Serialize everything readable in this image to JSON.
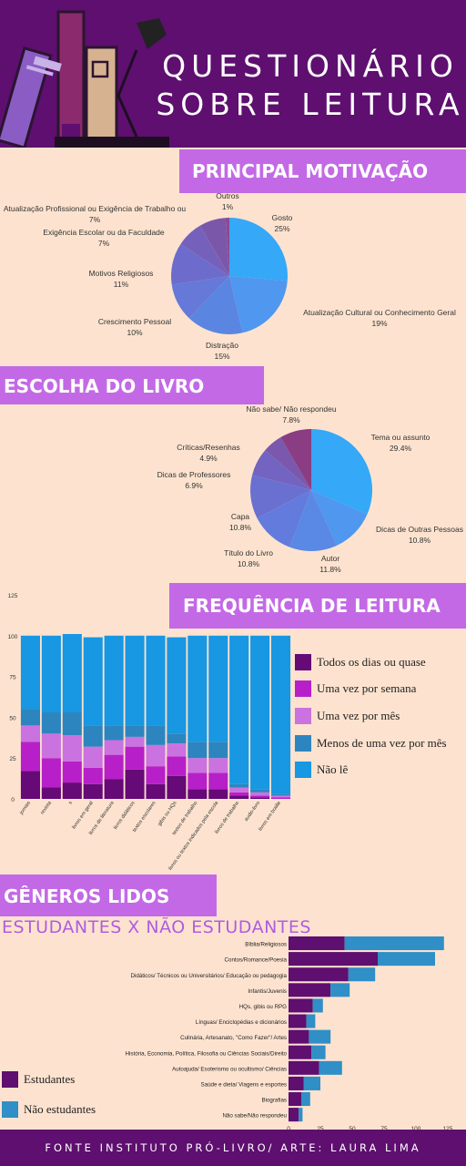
{
  "header": {
    "title_line1": "QUESTIONÁRIO",
    "title_line2": "SOBRE LEITURA"
  },
  "sections": {
    "motivation": "PRINCIPAL MOTIVAÇÃO",
    "choice": "ESCOLHA DO LIVRO",
    "frequency": "FREQUÊNCIA DE LEITURA",
    "genres": "GÊNEROS LIDOS",
    "genres_sub": "ESTUDANTES X NÃO ESTUDANTES"
  },
  "footer": "FONTE INSTITUTO PRÓ-LIVRO/ ARTE: LAURA LIMA",
  "chart_data": [
    {
      "type": "pie",
      "title": "PRINCIPAL MOTIVAÇÃO",
      "slices": [
        {
          "label": "Gosto",
          "pct": "25%",
          "value": 25,
          "color": "#35a8f8"
        },
        {
          "label": "Atualização Cultural ou Conhecimento Geral",
          "pct": "19%",
          "value": 19,
          "color": "#4f97ef"
        },
        {
          "label": "Distração",
          "pct": "15%",
          "value": 15,
          "color": "#5a86e2"
        },
        {
          "label": "Crescimento Pessoal",
          "pct": "10%",
          "value": 10,
          "color": "#6678d8"
        },
        {
          "label": "Motivos Religiosos",
          "pct": "11%",
          "value": 11,
          "color": "#6d6ccc"
        },
        {
          "label": "Exigência Escolar ou da Faculdade",
          "pct": "7%",
          "value": 7,
          "color": "#7561bb"
        },
        {
          "label": "Atualização Profissional ou Exigência de Trabalho ou",
          "pct": "7%",
          "value": 7,
          "color": "#7b57aa"
        },
        {
          "label": "Outros",
          "pct": "1%",
          "value": 1,
          "color": "#8a4a95"
        }
      ]
    },
    {
      "type": "pie",
      "title": "ESCOLHA DO LIVRO",
      "slices": [
        {
          "label": "Tema ou assunto",
          "pct": "29.4%",
          "value": 29.4,
          "color": "#35a8f8"
        },
        {
          "label": "Dicas de Outras Pessoas",
          "pct": "10.8%",
          "value": 10.8,
          "color": "#4f97ef"
        },
        {
          "label": "Autor",
          "pct": "11.8%",
          "value": 11.8,
          "color": "#5a88e5"
        },
        {
          "label": "Título do Livro",
          "pct": "10.8%",
          "value": 10.8,
          "color": "#627bdc"
        },
        {
          "label": "Capa",
          "pct": "10.8%",
          "value": 10.8,
          "color": "#6a70d0"
        },
        {
          "label": "Dicas de Professores",
          "pct": "6.9%",
          "value": 6.9,
          "color": "#7264c0"
        },
        {
          "label": "Críticas/Resenhas",
          "pct": "4.9%",
          "value": 4.9,
          "color": "#7a58ad"
        },
        {
          "label": "Não sabe/ Não respondeu",
          "pct": "7.8%",
          "value": 7.8,
          "color": "#8a3d82"
        }
      ]
    },
    {
      "type": "bar",
      "stacked": true,
      "title": "FREQUÊNCIA DE LEITURA",
      "categories": [
        "jornais",
        "revista",
        "s",
        "livros em geral",
        "livros de literatura",
        "livros didáticos",
        "textos escolares",
        "gibis ou HQs",
        "textos de trabalho",
        "livros ou textos indicados pela escola",
        "livros de trabalho",
        "audio-livro",
        "livros em braille"
      ],
      "ylim": [
        0,
        125
      ],
      "yticks": [
        0,
        25,
        50,
        75,
        100,
        125
      ],
      "series": [
        {
          "name": "Todos os dias ou quase",
          "color": "#650a76",
          "values": [
            17,
            7,
            10,
            9,
            12,
            18,
            9,
            14,
            6,
            6,
            2,
            1,
            0
          ]
        },
        {
          "name": "Uma vez por semana",
          "color": "#b720c8",
          "values": [
            18,
            18,
            13,
            10,
            15,
            14,
            11,
            12,
            10,
            10,
            2,
            1,
            1
          ]
        },
        {
          "name": "Uma vez por mês",
          "color": "#ca72e0",
          "values": [
            10,
            15,
            16,
            13,
            9,
            6,
            13,
            8,
            9,
            9,
            3,
            2,
            1
          ]
        },
        {
          "name": "Menos de uma vez por mês",
          "color": "#2d85bf",
          "values": [
            10,
            13,
            14,
            13,
            9,
            7,
            12,
            6,
            10,
            10,
            2,
            2,
            1
          ]
        },
        {
          "name": "Não lê",
          "color": "#1897e2",
          "values": [
            45,
            47,
            48,
            54,
            55,
            55,
            55,
            59,
            65,
            65,
            91,
            94,
            97
          ]
        }
      ]
    },
    {
      "type": "bar",
      "orientation": "horizontal",
      "stacked": true,
      "title": "GÊNEROS LIDOS",
      "categories": [
        "Bíblia/Religiosos",
        "Contos/Romance/Poesia",
        "Didáticos/ Técnicos ou Universitários/ Educação ou pedagogia",
        "Infantis/Juvenis",
        "HQs, gibis ou RPG",
        "Línguas/ Enciclopédias e dicionários",
        "Culinária, Artesanato, \"Como Fazer\"/ Artes",
        "História, Economia, Política, Filosofia ou Ciências Sociais/Direito",
        "Autoajuda/ Esoterismo ou ocultismo/ Ciências",
        "Saúde e dieta/ Viagens e esportes",
        "Biografias",
        "Não sabe/Não respondeu"
      ],
      "xlim": [
        0,
        125
      ],
      "xticks": [
        0,
        25,
        50,
        75,
        100,
        125
      ],
      "series": [
        {
          "name": "Estudantes",
          "color": "#5e0f6f",
          "values": [
            44,
            70,
            47,
            33,
            19,
            14,
            16,
            18,
            24,
            12,
            10,
            8
          ]
        },
        {
          "name": "Não estudantes",
          "color": "#2f8fc6",
          "values": [
            78,
            45,
            21,
            15,
            8,
            7,
            17,
            11,
            18,
            13,
            7,
            3
          ]
        }
      ]
    }
  ]
}
